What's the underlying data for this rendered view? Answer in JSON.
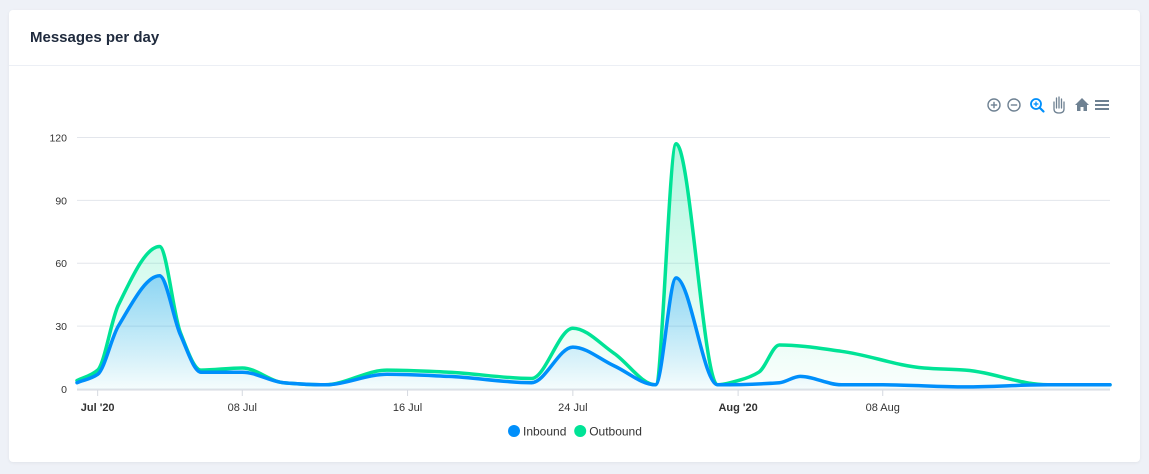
{
  "card": {
    "title": "Messages per day"
  },
  "toolbar": {
    "items": [
      "zoom-in-icon",
      "zoom-out-icon",
      "zoom-selection-icon",
      "pan-hand-icon",
      "home-reset-icon",
      "menu-icon"
    ],
    "active_color": "#008ffb",
    "inactive_color": "#6e8192"
  },
  "chart_data": {
    "type": "area",
    "title": "Messages per day",
    "xlabel": "",
    "ylabel": "",
    "x_start": "2020-06-30",
    "x_end": "2020-08-19",
    "ylim": [
      0,
      125
    ],
    "yticks": [
      0,
      30,
      60,
      90,
      120
    ],
    "xticks": [
      {
        "date": "2020-07-01",
        "label": "Jul '20",
        "bold": true
      },
      {
        "date": "2020-07-08",
        "label": "08 Jul",
        "bold": false
      },
      {
        "date": "2020-07-16",
        "label": "16 Jul",
        "bold": false
      },
      {
        "date": "2020-07-24",
        "label": "24 Jul",
        "bold": false
      },
      {
        "date": "2020-08-01",
        "label": "Aug '20",
        "bold": true
      },
      {
        "date": "2020-08-08",
        "label": "08 Aug",
        "bold": false
      }
    ],
    "grid": true,
    "legend": "bottom-center",
    "series": [
      {
        "name": "Inbound",
        "color": "#008ffb",
        "points": [
          [
            "2020-06-30",
            3
          ],
          [
            "2020-07-01",
            7
          ],
          [
            "2020-07-02",
            30
          ],
          [
            "2020-07-04",
            54
          ],
          [
            "2020-07-05",
            26
          ],
          [
            "2020-07-06",
            8
          ],
          [
            "2020-07-08",
            8
          ],
          [
            "2020-07-10",
            3
          ],
          [
            "2020-07-12",
            2
          ],
          [
            "2020-07-15",
            7
          ],
          [
            "2020-07-18",
            6
          ],
          [
            "2020-07-22",
            3
          ],
          [
            "2020-07-24",
            20
          ],
          [
            "2020-07-26",
            11
          ],
          [
            "2020-07-28",
            2
          ],
          [
            "2020-07-29",
            53
          ],
          [
            "2020-07-31",
            2
          ],
          [
            "2020-08-03",
            3
          ],
          [
            "2020-08-04",
            6
          ],
          [
            "2020-08-06",
            2
          ],
          [
            "2020-08-08",
            2
          ],
          [
            "2020-08-12",
            1
          ],
          [
            "2020-08-16",
            2
          ],
          [
            "2020-08-19",
            2
          ]
        ]
      },
      {
        "name": "Outbound",
        "color": "#00e396",
        "points": [
          [
            "2020-06-30",
            4
          ],
          [
            "2020-07-01",
            9
          ],
          [
            "2020-07-02",
            40
          ],
          [
            "2020-07-04",
            68
          ],
          [
            "2020-07-05",
            27
          ],
          [
            "2020-07-06",
            9
          ],
          [
            "2020-07-08",
            10
          ],
          [
            "2020-07-10",
            3
          ],
          [
            "2020-07-12",
            2
          ],
          [
            "2020-07-15",
            9
          ],
          [
            "2020-07-18",
            8
          ],
          [
            "2020-07-22",
            5
          ],
          [
            "2020-07-24",
            29
          ],
          [
            "2020-07-26",
            17
          ],
          [
            "2020-07-28",
            2
          ],
          [
            "2020-07-29",
            117
          ],
          [
            "2020-07-31",
            2
          ],
          [
            "2020-08-01",
            4
          ],
          [
            "2020-08-02",
            8
          ],
          [
            "2020-08-03",
            21
          ],
          [
            "2020-08-06",
            18
          ],
          [
            "2020-08-10",
            10
          ],
          [
            "2020-08-12",
            9
          ],
          [
            "2020-08-16",
            2
          ],
          [
            "2020-08-19",
            2
          ]
        ]
      }
    ]
  }
}
